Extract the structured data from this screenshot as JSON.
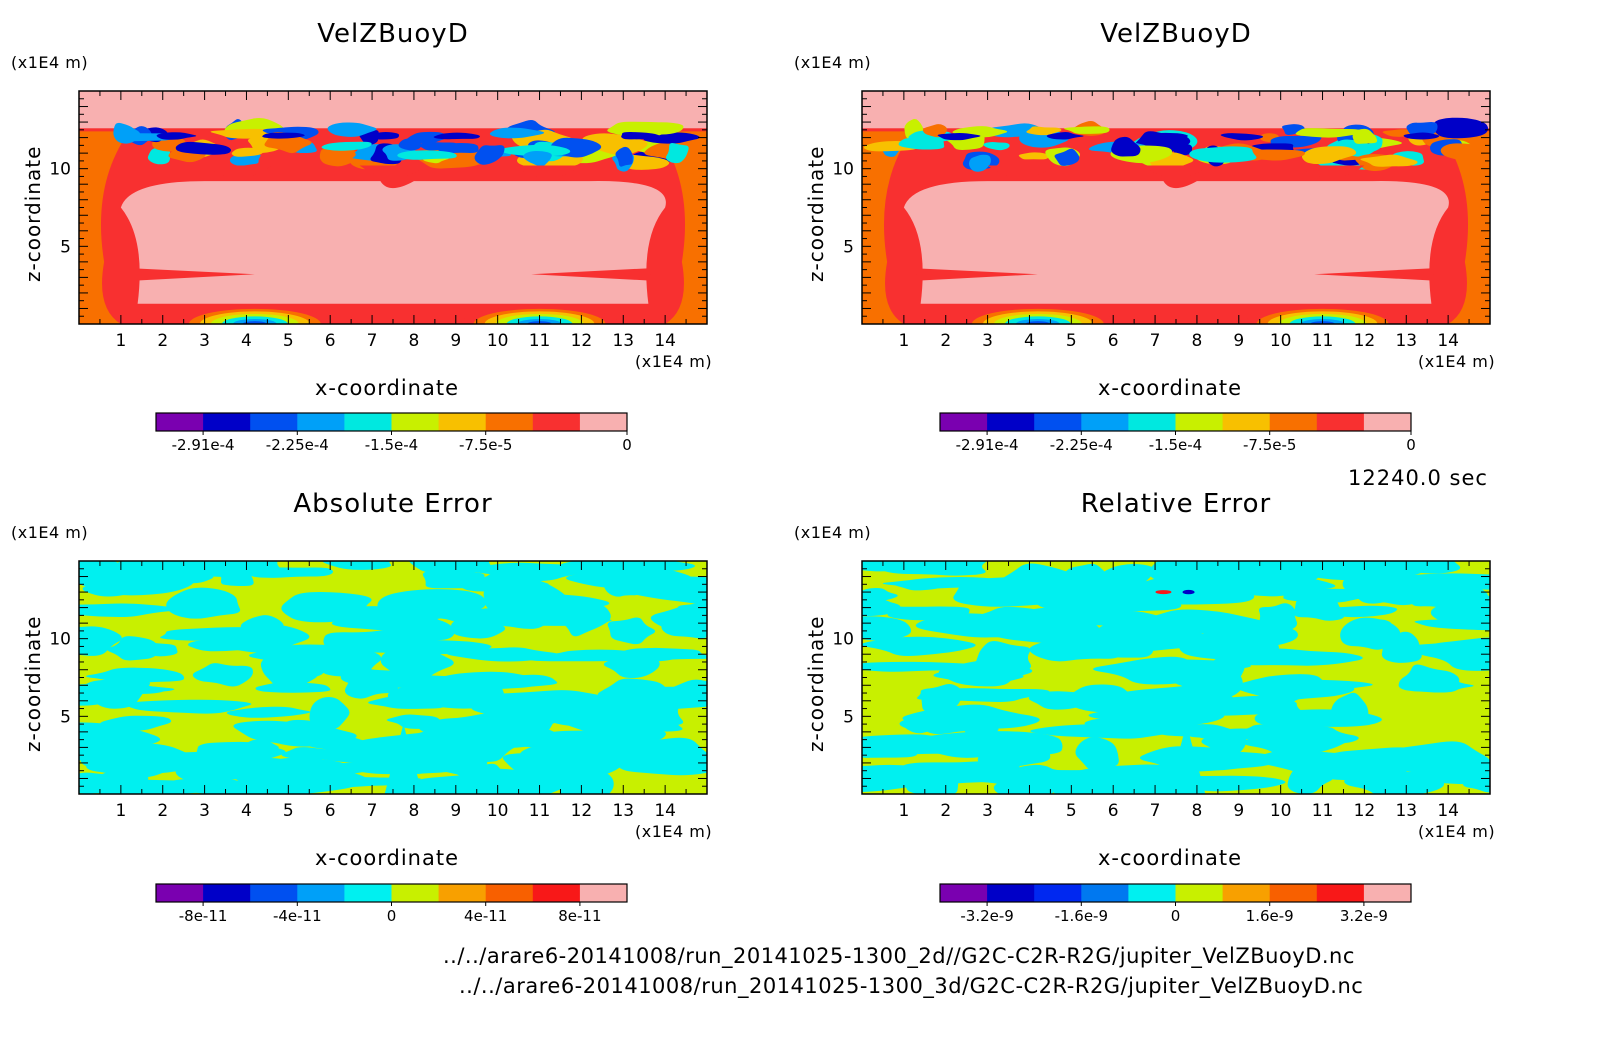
{
  "time_label": "12240.0 sec",
  "file_paths": [
    "../../arare6-20141008/run_20141025-1300_2d//G2C-C2R-R2G/jupiter_VelZBuoyD.nc",
    "../../arare6-20141008/run_20141025-1300_3d/G2C-C2R-R2G/jupiter_VelZBuoyD.nc"
  ],
  "chart_data": [
    {
      "type": "heatmap",
      "title": "VelZBuoyD",
      "xlabel": "x-coordinate",
      "ylabel": "z-coordinate",
      "x_unit": "(x1E4 m)",
      "y_unit": "(x1E4 m)",
      "xlim": [
        0,
        15
      ],
      "ylim": [
        0,
        15
      ],
      "x_ticks": [
        1,
        2,
        3,
        4,
        5,
        6,
        7,
        8,
        9,
        10,
        11,
        12,
        13,
        14
      ],
      "y_ticks": [
        5,
        10
      ],
      "colorbar": {
        "colors": [
          "#7a00b0",
          "#0000c8",
          "#0050f0",
          "#00a0f8",
          "#00e8e0",
          "#c8f000",
          "#f8c000",
          "#f87000",
          "#f83030",
          "#f8b0b0"
        ],
        "tick_labels": [
          "-2.91e-4",
          "-2.25e-4",
          "-1.5e-4",
          "-7.5e-5",
          "0"
        ],
        "range": [
          -0.000291,
          0
        ]
      },
      "field": "velocity"
    },
    {
      "type": "heatmap",
      "title": "VelZBuoyD",
      "xlabel": "x-coordinate",
      "ylabel": "z-coordinate",
      "x_unit": "(x1E4 m)",
      "y_unit": "(x1E4 m)",
      "xlim": [
        0,
        15
      ],
      "ylim": [
        0,
        15
      ],
      "x_ticks": [
        1,
        2,
        3,
        4,
        5,
        6,
        7,
        8,
        9,
        10,
        11,
        12,
        13,
        14
      ],
      "y_ticks": [
        5,
        10
      ],
      "colorbar": {
        "colors": [
          "#7a00b0",
          "#0000c8",
          "#0050f0",
          "#00a0f8",
          "#00e8e0",
          "#c8f000",
          "#f8c000",
          "#f87000",
          "#f83030",
          "#f8b0b0"
        ],
        "tick_labels": [
          "-2.91e-4",
          "-2.25e-4",
          "-1.5e-4",
          "-7.5e-5",
          "0"
        ],
        "range": [
          -0.000291,
          0
        ]
      },
      "field": "velocity"
    },
    {
      "type": "heatmap",
      "title": "Absolute Error",
      "xlabel": "x-coordinate",
      "ylabel": "z-coordinate",
      "x_unit": "(x1E4 m)",
      "y_unit": "(x1E4 m)",
      "xlim": [
        0,
        15
      ],
      "ylim": [
        0,
        15
      ],
      "x_ticks": [
        1,
        2,
        3,
        4,
        5,
        6,
        7,
        8,
        9,
        10,
        11,
        12,
        13,
        14
      ],
      "y_ticks": [
        5,
        10
      ],
      "colorbar": {
        "colors": [
          "#7a00b0",
          "#0000c8",
          "#0050f0",
          "#00a0f8",
          "#00f0f0",
          "#c8f000",
          "#f8a000",
          "#f86000",
          "#f81818",
          "#f8b0b0"
        ],
        "tick_labels": [
          "-8e-11",
          "-4e-11",
          "0",
          "4e-11",
          "8e-11"
        ],
        "range": [
          -1e-10,
          1e-10
        ]
      },
      "field": "error"
    },
    {
      "type": "heatmap",
      "title": "Relative Error",
      "xlabel": "x-coordinate",
      "ylabel": "z-coordinate",
      "x_unit": "(x1E4 m)",
      "y_unit": "(x1E4 m)",
      "xlim": [
        0,
        15
      ],
      "ylim": [
        0,
        15
      ],
      "x_ticks": [
        1,
        2,
        3,
        4,
        5,
        6,
        7,
        8,
        9,
        10,
        11,
        12,
        13,
        14
      ],
      "y_ticks": [
        5,
        10
      ],
      "colorbar": {
        "colors": [
          "#7a00b0",
          "#0000c8",
          "#0028f0",
          "#0078f0",
          "#00f0f0",
          "#c8f000",
          "#f8a000",
          "#f86000",
          "#f81818",
          "#f8b0b0"
        ],
        "tick_labels": [
          "-3.2e-9",
          "-1.6e-9",
          "0",
          "1.6e-9",
          "3.2e-9"
        ],
        "range": [
          -4e-09,
          4e-09
        ]
      },
      "field": "error"
    }
  ]
}
